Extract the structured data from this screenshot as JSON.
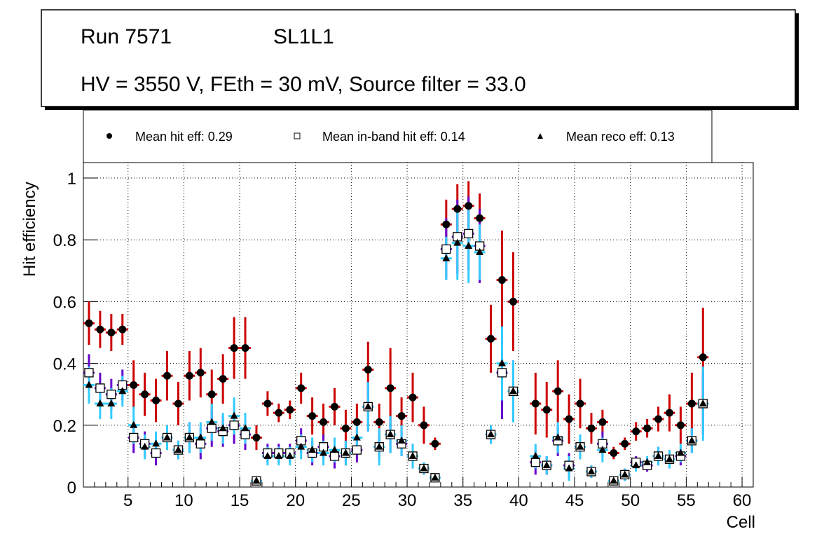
{
  "chart_data": {
    "type": "scatter",
    "title_box": {
      "line1_left": "Run 7571",
      "line1_right": "SL1L1",
      "line2": "HV = 3550 V, FEth = 30 mV, Source filter = 33.0"
    },
    "xlabel": "Cell",
    "ylabel": "Hit efficiency",
    "xlim": [
      1,
      61
    ],
    "ylim": [
      0,
      1.05
    ],
    "xticks": [
      5,
      10,
      15,
      20,
      25,
      30,
      35,
      40,
      45,
      50,
      55,
      60
    ],
    "yticks": [
      0,
      0.2,
      0.4,
      0.6,
      0.8,
      1
    ],
    "ytick_labels": [
      "0",
      "0.2",
      "0.4",
      "0.6",
      "0.8",
      "1"
    ],
    "grid": true,
    "legend_position": "top",
    "legend": [
      {
        "label": "Mean hit  eff: 0.29",
        "marker": "circle"
      },
      {
        "label": "Mean in-band hit eff: 0.14",
        "marker": "open-square"
      },
      {
        "label": "Mean reco eff: 0.13",
        "marker": "triangle"
      }
    ],
    "colors": {
      "hit": "#cc0000",
      "inband": "#6600cc",
      "reco": "#33ccff"
    },
    "series": [
      {
        "name": "Mean hit eff",
        "x": [
          1,
          2,
          3,
          4,
          5,
          6,
          7,
          8,
          9,
          10,
          11,
          12,
          13,
          14,
          15,
          16,
          17,
          18,
          19,
          20,
          21,
          22,
          23,
          24,
          25,
          26,
          27,
          28,
          29,
          30,
          31,
          32,
          33,
          34,
          35,
          36,
          37,
          38,
          39,
          41,
          42,
          43,
          44,
          45,
          46,
          47,
          48,
          49,
          50,
          51,
          52,
          53,
          54,
          55,
          56
        ],
        "y": [
          0.53,
          0.51,
          0.5,
          0.51,
          0.33,
          0.3,
          0.28,
          0.36,
          0.27,
          0.36,
          0.37,
          0.3,
          0.35,
          0.45,
          0.45,
          0.16,
          0.27,
          0.24,
          0.25,
          0.32,
          0.23,
          0.21,
          0.26,
          0.19,
          0.21,
          0.38,
          0.21,
          0.32,
          0.23,
          0.29,
          0.2,
          0.14,
          0.85,
          0.9,
          0.91,
          0.87,
          0.48,
          0.67,
          0.6,
          0.27,
          0.25,
          0.31,
          0.22,
          0.27,
          0.19,
          0.21,
          0.11,
          0.14,
          0.18,
          0.19,
          0.22,
          0.24,
          0.2,
          0.27,
          0.42
        ],
        "err": [
          0.07,
          0.06,
          0.06,
          0.05,
          0.08,
          0.07,
          0.07,
          0.08,
          0.07,
          0.08,
          0.08,
          0.08,
          0.08,
          0.1,
          0.1,
          0.04,
          0.04,
          0.03,
          0.03,
          0.05,
          0.06,
          0.06,
          0.06,
          0.06,
          0.06,
          0.09,
          0.06,
          0.13,
          0.06,
          0.08,
          0.06,
          0.02,
          0.08,
          0.08,
          0.08,
          0.08,
          0.11,
          0.16,
          0.16,
          0.1,
          0.09,
          0.1,
          0.08,
          0.08,
          0.05,
          0.04,
          0.02,
          0.02,
          0.03,
          0.03,
          0.04,
          0.06,
          0.06,
          0.1,
          0.16
        ]
      },
      {
        "name": "Mean in-band hit eff",
        "x": [
          1,
          2,
          3,
          4,
          5,
          6,
          7,
          8,
          9,
          10,
          11,
          12,
          13,
          14,
          15,
          16,
          17,
          18,
          19,
          20,
          21,
          22,
          23,
          24,
          25,
          26,
          27,
          28,
          29,
          30,
          31,
          32,
          33,
          34,
          35,
          36,
          37,
          38,
          39,
          41,
          42,
          43,
          44,
          45,
          46,
          47,
          48,
          49,
          50,
          51,
          52,
          53,
          54,
          55,
          56
        ],
        "y": [
          0.37,
          0.32,
          0.3,
          0.33,
          0.16,
          0.14,
          0.11,
          0.16,
          0.12,
          0.16,
          0.14,
          0.19,
          0.18,
          0.2,
          0.17,
          0.02,
          0.11,
          0.11,
          0.11,
          0.15,
          0.11,
          0.13,
          0.1,
          0.11,
          0.12,
          0.26,
          0.13,
          0.17,
          0.14,
          0.1,
          0.06,
          0.03,
          0.77,
          0.81,
          0.82,
          0.78,
          0.17,
          0.37,
          0.31,
          0.08,
          0.07,
          0.15,
          0.07,
          0.13,
          0.05,
          0.14,
          0.02,
          0.04,
          0.08,
          0.07,
          0.1,
          0.09,
          0.1,
          0.15,
          0.27
        ],
        "err": [
          0.06,
          0.05,
          0.05,
          0.05,
          0.05,
          0.04,
          0.04,
          0.04,
          0.03,
          0.05,
          0.05,
          0.06,
          0.05,
          0.06,
          0.05,
          0.01,
          0.03,
          0.03,
          0.03,
          0.04,
          0.04,
          0.04,
          0.04,
          0.04,
          0.04,
          0.08,
          0.04,
          0.06,
          0.04,
          0.04,
          0.02,
          0.01,
          0.1,
          0.12,
          0.12,
          0.12,
          0.03,
          0.15,
          0.1,
          0.04,
          0.03,
          0.05,
          0.04,
          0.04,
          0.02,
          0.04,
          0.01,
          0.02,
          0.02,
          0.02,
          0.03,
          0.03,
          0.03,
          0.04,
          0.1
        ]
      },
      {
        "name": "Mean reco eff",
        "x": [
          1,
          2,
          3,
          4,
          5,
          6,
          7,
          8,
          9,
          10,
          11,
          12,
          13,
          14,
          15,
          16,
          17,
          18,
          19,
          20,
          21,
          22,
          23,
          24,
          25,
          26,
          27,
          28,
          29,
          30,
          31,
          32,
          33,
          34,
          35,
          36,
          37,
          38,
          39,
          41,
          42,
          43,
          44,
          45,
          46,
          47,
          48,
          49,
          50,
          51,
          52,
          53,
          54,
          55,
          56
        ],
        "y": [
          0.33,
          0.27,
          0.27,
          0.31,
          0.2,
          0.13,
          0.14,
          0.16,
          0.12,
          0.16,
          0.16,
          0.21,
          0.19,
          0.23,
          0.19,
          0.02,
          0.1,
          0.1,
          0.1,
          0.13,
          0.12,
          0.11,
          0.12,
          0.11,
          0.16,
          0.26,
          0.13,
          0.17,
          0.15,
          0.1,
          0.06,
          0.03,
          0.74,
          0.79,
          0.78,
          0.76,
          0.17,
          0.4,
          0.31,
          0.1,
          0.07,
          0.16,
          0.06,
          0.13,
          0.05,
          0.12,
          0.02,
          0.04,
          0.07,
          0.08,
          0.1,
          0.09,
          0.11,
          0.15,
          0.27
        ],
        "err": [
          0.06,
          0.05,
          0.05,
          0.05,
          0.06,
          0.04,
          0.04,
          0.04,
          0.03,
          0.05,
          0.05,
          0.06,
          0.05,
          0.06,
          0.05,
          0.01,
          0.03,
          0.03,
          0.03,
          0.04,
          0.04,
          0.04,
          0.04,
          0.04,
          0.05,
          0.08,
          0.06,
          0.06,
          0.05,
          0.04,
          0.02,
          0.01,
          0.07,
          0.12,
          0.12,
          0.09,
          0.03,
          0.12,
          0.1,
          0.04,
          0.03,
          0.05,
          0.04,
          0.04,
          0.02,
          0.04,
          0.01,
          0.02,
          0.02,
          0.02,
          0.03,
          0.03,
          0.03,
          0.04,
          0.12
        ]
      }
    ]
  }
}
